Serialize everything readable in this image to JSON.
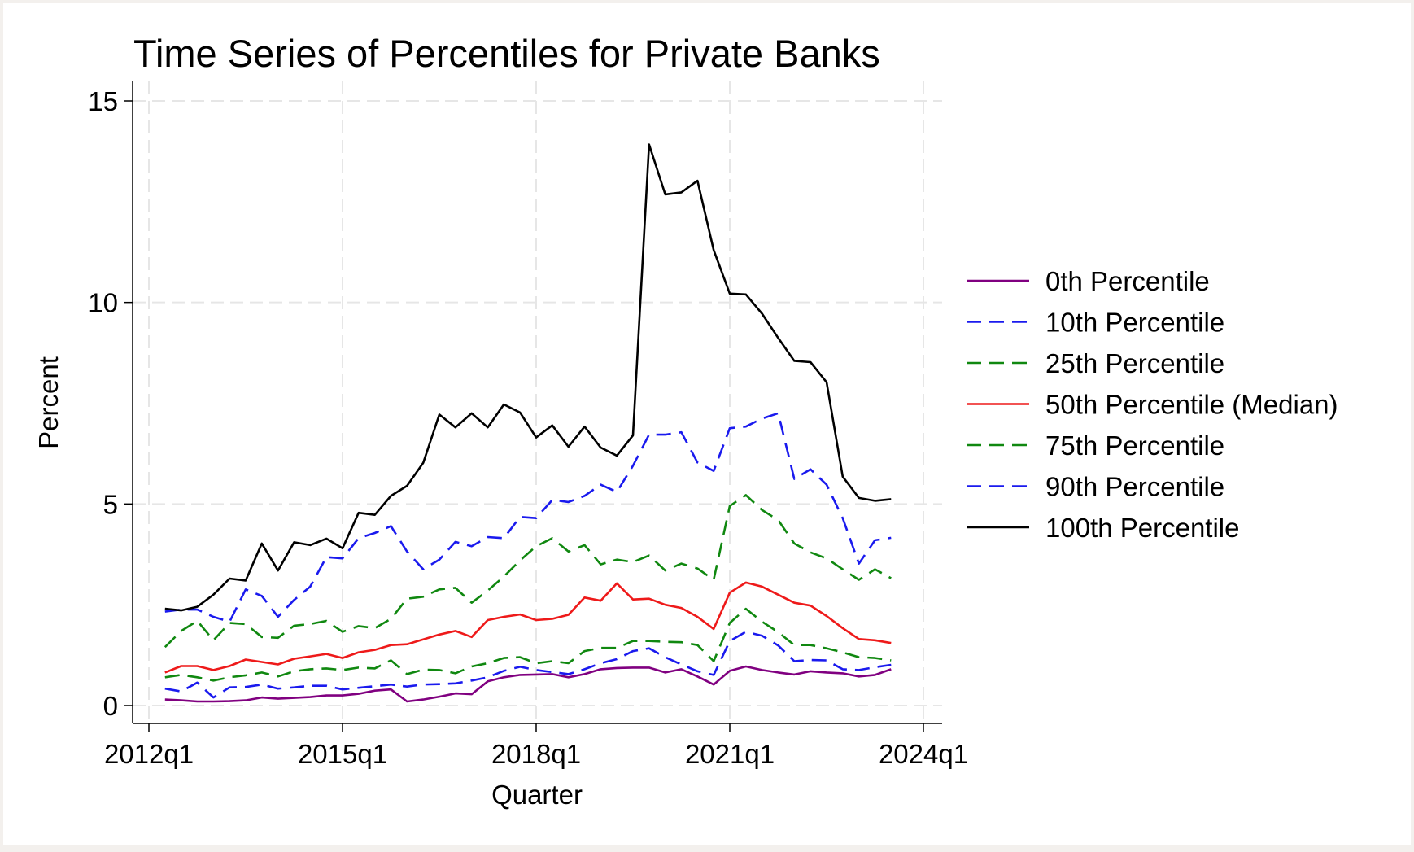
{
  "chart_data": {
    "type": "line",
    "title": "Time Series of Percentiles for Private Banks",
    "xlabel": "Quarter",
    "ylabel": "Percent",
    "xlim": [
      "2012q1",
      "2024q1"
    ],
    "ylim": [
      -0.5,
      15.5
    ],
    "x_ticks": [
      "2012q1",
      "2015q1",
      "2018q1",
      "2021q1",
      "2024q1"
    ],
    "y_ticks": [
      0,
      5,
      10,
      15
    ],
    "grid": true,
    "legend_position": "right",
    "x": [
      "2012q2",
      "2012q3",
      "2012q4",
      "2013q1",
      "2013q2",
      "2013q3",
      "2013q4",
      "2014q1",
      "2014q2",
      "2014q3",
      "2014q4",
      "2015q1",
      "2015q2",
      "2015q3",
      "2015q4",
      "2016q1",
      "2016q2",
      "2016q3",
      "2016q4",
      "2017q1",
      "2017q2",
      "2017q3",
      "2017q4",
      "2018q1",
      "2018q2",
      "2018q3",
      "2018q4",
      "2019q1",
      "2019q2",
      "2019q3",
      "2019q4",
      "2020q1",
      "2020q2",
      "2020q3",
      "2020q4",
      "2021q1",
      "2021q2",
      "2021q3",
      "2021q4",
      "2022q1",
      "2022q2",
      "2022q3",
      "2022q4",
      "2023q1",
      "2023q2",
      "2023q3"
    ],
    "series": [
      {
        "name": "0th Percentile",
        "color": "#800080",
        "dash": "solid",
        "values": [
          0.15,
          0.13,
          0.1,
          0.1,
          0.11,
          0.13,
          0.2,
          0.17,
          0.19,
          0.21,
          0.25,
          0.25,
          0.29,
          0.37,
          0.4,
          0.1,
          0.15,
          0.22,
          0.3,
          0.28,
          0.6,
          0.7,
          0.76,
          0.77,
          0.78,
          0.7,
          0.78,
          0.9,
          0.93,
          0.94,
          0.94,
          0.82,
          0.9,
          0.72,
          0.52,
          0.86,
          0.97,
          0.88,
          0.82,
          0.77,
          0.85,
          0.82,
          0.8,
          0.72,
          0.76,
          0.9
        ]
      },
      {
        "name": "10th Percentile",
        "color": "#1a1aee",
        "dash": "dash",
        "values": [
          0.42,
          0.35,
          0.57,
          0.2,
          0.45,
          0.46,
          0.52,
          0.42,
          0.45,
          0.49,
          0.49,
          0.4,
          0.44,
          0.48,
          0.52,
          0.47,
          0.52,
          0.53,
          0.55,
          0.62,
          0.7,
          0.86,
          0.96,
          0.88,
          0.83,
          0.78,
          0.9,
          1.05,
          1.15,
          1.35,
          1.42,
          1.2,
          1.02,
          0.85,
          0.76,
          1.6,
          1.83,
          1.73,
          1.49,
          1.1,
          1.13,
          1.12,
          0.9,
          0.88,
          0.95,
          1.01
        ]
      },
      {
        "name": "25th Percentile",
        "color": "#108810",
        "dash": "dash",
        "values": [
          0.7,
          0.76,
          0.7,
          0.62,
          0.7,
          0.75,
          0.82,
          0.72,
          0.85,
          0.9,
          0.92,
          0.88,
          0.94,
          0.92,
          1.12,
          0.78,
          0.89,
          0.88,
          0.8,
          0.97,
          1.05,
          1.18,
          1.2,
          1.05,
          1.1,
          1.05,
          1.35,
          1.43,
          1.43,
          1.6,
          1.6,
          1.58,
          1.57,
          1.5,
          1.1,
          2.05,
          2.4,
          2.08,
          1.82,
          1.5,
          1.5,
          1.42,
          1.32,
          1.2,
          1.18,
          1.12
        ]
      },
      {
        "name": "50th Percentile (Median)",
        "color": "#ee1a1a",
        "dash": "solid",
        "values": [
          0.82,
          0.98,
          0.98,
          0.88,
          0.98,
          1.14,
          1.08,
          1.02,
          1.16,
          1.22,
          1.28,
          1.18,
          1.32,
          1.38,
          1.5,
          1.52,
          1.64,
          1.76,
          1.85,
          1.7,
          2.12,
          2.2,
          2.26,
          2.12,
          2.15,
          2.25,
          2.68,
          2.6,
          3.03,
          2.63,
          2.65,
          2.5,
          2.42,
          2.2,
          1.9,
          2.8,
          3.05,
          2.95,
          2.75,
          2.55,
          2.48,
          2.22,
          1.92,
          1.65,
          1.62,
          1.55
        ]
      },
      {
        "name": "75th Percentile",
        "color": "#108810",
        "dash": "dash",
        "values": [
          1.45,
          1.85,
          2.1,
          1.62,
          2.05,
          2.02,
          1.7,
          1.68,
          1.98,
          2.02,
          2.1,
          1.83,
          1.97,
          1.92,
          2.15,
          2.65,
          2.7,
          2.88,
          2.92,
          2.55,
          2.85,
          3.2,
          3.6,
          3.95,
          4.15,
          3.82,
          3.98,
          3.5,
          3.62,
          3.56,
          3.72,
          3.35,
          3.52,
          3.4,
          3.12,
          4.95,
          5.22,
          4.85,
          4.6,
          4.02,
          3.8,
          3.65,
          3.38,
          3.12,
          3.38,
          3.16
        ]
      },
      {
        "name": "90th Percentile",
        "color": "#1a1aee",
        "dash": "dash",
        "values": [
          2.33,
          2.38,
          2.38,
          2.2,
          2.08,
          2.88,
          2.72,
          2.2,
          2.62,
          2.95,
          3.68,
          3.65,
          4.15,
          4.28,
          4.45,
          3.82,
          3.38,
          3.62,
          4.06,
          3.95,
          4.18,
          4.15,
          4.68,
          4.65,
          5.1,
          5.05,
          5.2,
          5.48,
          5.3,
          5.95,
          6.72,
          6.72,
          6.78,
          6.03,
          5.82,
          6.88,
          6.92,
          7.12,
          7.25,
          5.62,
          5.86,
          5.48,
          4.65,
          3.52,
          4.1,
          4.16
        ]
      },
      {
        "name": "100th Percentile",
        "color": "#000000",
        "dash": "solid",
        "values": [
          2.4,
          2.36,
          2.45,
          2.75,
          3.15,
          3.1,
          4.02,
          3.35,
          4.05,
          3.98,
          4.14,
          3.9,
          4.78,
          4.73,
          5.2,
          5.45,
          6.02,
          7.22,
          6.9,
          7.25,
          6.9,
          7.47,
          7.27,
          6.65,
          6.95,
          6.42,
          6.92,
          6.4,
          6.2,
          6.7,
          13.92,
          12.68,
          12.73,
          13.02,
          11.3,
          10.22,
          10.2,
          9.72,
          9.12,
          8.55,
          8.52,
          8.02,
          5.68,
          5.15,
          5.08,
          5.12
        ]
      }
    ]
  }
}
